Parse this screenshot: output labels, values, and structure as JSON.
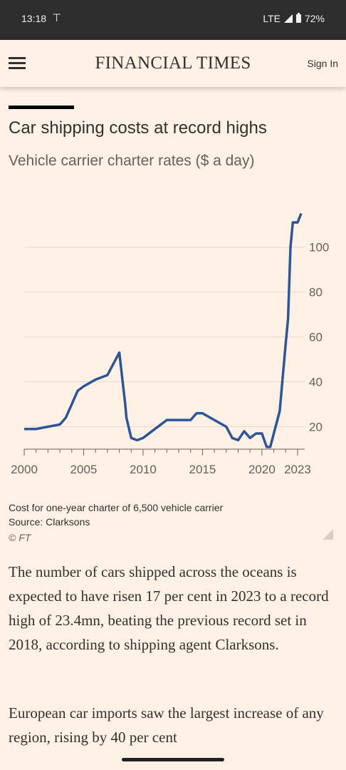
{
  "status": {
    "time": "13:18",
    "network": "LTE",
    "battery": "72%"
  },
  "header": {
    "logo": "FINANCIAL TIMES",
    "signin": "Sign In"
  },
  "article": {
    "chart_title": "Car shipping costs at record highs",
    "chart_subtitle": "Vehicle carrier charter rates ($ a day)",
    "note": "Cost for one-year charter of 6,500 vehicle carrier",
    "source": "Source: Clarksons",
    "credit": "© FT",
    "paragraph1": "The number of cars shipped across the oceans is expected to have risen 17 per cent in 2023 to a record high of 23.4mn, beating the previous record set in 2018, according to shipping agent Clarksons.",
    "paragraph2": "European car imports saw the largest increase of any region, rising by 40 per cent"
  },
  "colors": {
    "line": "#2e5597",
    "background": "#fff1e5",
    "text": "#33302e"
  },
  "chart_data": {
    "type": "line",
    "title": "Car shipping costs at record highs",
    "subtitle": "Vehicle carrier charter rates ($ a day)",
    "xlim": [
      2000,
      2023.6
    ],
    "ylim": [
      10,
      118
    ],
    "x_ticks": [
      2000,
      2005,
      2010,
      2015,
      2020,
      2023
    ],
    "y_ticks": [
      20,
      40,
      60,
      80,
      100
    ],
    "grid": true,
    "series": [
      {
        "x": [
          2000,
          2001,
          2002,
          2003,
          2003.5,
          2004,
          2004.5,
          2005,
          2006,
          2007,
          2008,
          2008.5,
          2008.6,
          2009,
          2009.5,
          2010,
          2011,
          2012,
          2013,
          2014,
          2014.5,
          2015,
          2016,
          2017,
          2017.5,
          2018,
          2018.5,
          2019,
          2019.5,
          2020,
          2020.4,
          2020.7,
          2021,
          2021.5,
          2022,
          2022.2,
          2022.4,
          2022.6,
          2023,
          2023.3
        ],
        "y": [
          19,
          19,
          20,
          21,
          24,
          30,
          36,
          38,
          41,
          43,
          53,
          30,
          24,
          15,
          14,
          15,
          19,
          23,
          23,
          23,
          26,
          26,
          23,
          20,
          15,
          14,
          18,
          15,
          17,
          17,
          11,
          11,
          17,
          27,
          57,
          68,
          100,
          111,
          111,
          115
        ]
      }
    ]
  }
}
